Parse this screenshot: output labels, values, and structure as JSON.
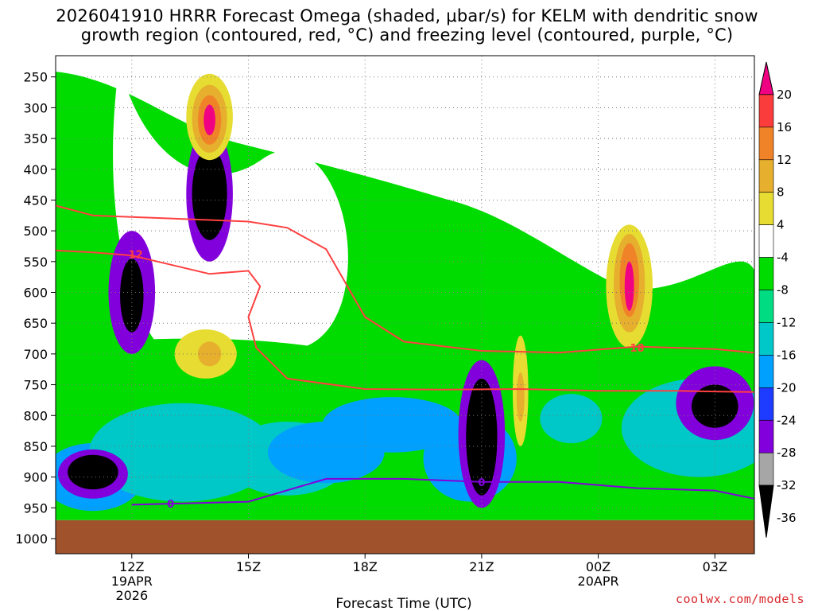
{
  "title_line1": "2026041910 HRRR Forecast Omega (shaded, μbar/s) for KELM with dendritic snow",
  "title_line2": "growth region (contoured, red, °C) and freezing level (contoured, purple, °C)",
  "credit": "coolwx.com/models",
  "chart_data": {
    "type": "heatmap",
    "title": "2026041910 HRRR Forecast Omega (shaded, μbar/s) for KELM with dendritic snow growth region (contoured, red, °C) and freezing level (contoured, purple, °C)",
    "xlabel": "Forecast Time (UTC)",
    "ylabel": "",
    "y_axis": "pressure (mb), reversed",
    "x_ticks": [
      {
        "label": "12Z",
        "sub1": "19APR",
        "sub2": "2026",
        "hour": 2
      },
      {
        "label": "15Z",
        "sub1": "",
        "sub2": "",
        "hour": 5
      },
      {
        "label": "18Z",
        "sub1": "",
        "sub2": "",
        "hour": 8
      },
      {
        "label": "21Z",
        "sub1": "",
        "sub2": "",
        "hour": 11
      },
      {
        "label": "00Z",
        "sub1": "20APR",
        "sub2": "",
        "hour": 14
      },
      {
        "label": "03Z",
        "sub1": "",
        "sub2": "",
        "hour": 17
      }
    ],
    "x_range_hours": [
      0,
      18
    ],
    "y_ticks": [
      250,
      300,
      350,
      400,
      450,
      500,
      550,
      600,
      650,
      700,
      750,
      800,
      850,
      900,
      950,
      1000
    ],
    "y_range": [
      200,
      1000
    ],
    "surface_pressure": 970,
    "colorbar": {
      "levels": [
        -36,
        -32,
        -28,
        -24,
        -20,
        -16,
        -12,
        -8,
        -4,
        4,
        8,
        12,
        16,
        20
      ],
      "colors": [
        "#000000",
        "#a6a6a6",
        "#8200dc",
        "#1e3cff",
        "#00a0ff",
        "#00c8c8",
        "#00dc82",
        "#00dc00",
        "#ffffff",
        "#e6dc32",
        "#e6af2d",
        "#f08228",
        "#fa3c3c",
        "#f00082"
      ],
      "units": "μbar/s"
    },
    "grid": true,
    "contours": {
      "dgz_red_-12": [
        [
          -0.5,
          530
        ],
        [
          1,
          535
        ],
        [
          2,
          540
        ],
        [
          3,
          555
        ],
        [
          4,
          570
        ],
        [
          5,
          565
        ],
        [
          5.3,
          590
        ],
        [
          5,
          640
        ],
        [
          5.2,
          690
        ],
        [
          6,
          740
        ],
        [
          8,
          757
        ],
        [
          10,
          758
        ],
        [
          12,
          757
        ],
        [
          14,
          760
        ],
        [
          16,
          760
        ],
        [
          17,
          761
        ],
        [
          18,
          762
        ]
      ],
      "dgz_red_-18": [
        [
          -0.5,
          450
        ],
        [
          1,
          475
        ],
        [
          3,
          480
        ],
        [
          5,
          485
        ],
        [
          6,
          495
        ],
        [
          7,
          530
        ],
        [
          8,
          640
        ],
        [
          9,
          680
        ],
        [
          11,
          695
        ],
        [
          13,
          698
        ],
        [
          15,
          688
        ],
        [
          17,
          692
        ],
        [
          18,
          698
        ]
      ],
      "freezing_purple_0": [
        [
          2,
          945
        ],
        [
          5,
          940
        ],
        [
          7,
          903
        ],
        [
          9,
          903
        ],
        [
          11,
          908
        ],
        [
          13,
          908
        ],
        [
          15,
          918
        ],
        [
          17,
          922
        ],
        [
          18,
          935
        ]
      ]
    },
    "contour_labels": [
      {
        "text": "12",
        "hour": 2.1,
        "p": 538,
        "color": "#ff4040"
      },
      {
        "text": "18",
        "hour": 15.0,
        "p": 690,
        "color": "#ff4040"
      },
      {
        "text": "0",
        "hour": 3.0,
        "p": 943,
        "color": "#8200dc"
      },
      {
        "text": "0",
        "hour": 11.0,
        "p": 908,
        "color": "#8200dc"
      }
    ],
    "blobs": [
      {
        "h": 0.3,
        "p": 770,
        "rh": 1.6,
        "rp": 40,
        "lvl": 0
      },
      {
        "h": 3.5,
        "p": 720,
        "rh": 4.5,
        "rp": 45,
        "lvl": 0
      },
      {
        "h": 9.0,
        "p": 830,
        "rh": 4.0,
        "rp": 60,
        "lvl": 0
      },
      {
        "h": 14.5,
        "p": 800,
        "rh": 4.0,
        "rp": 60,
        "lvl": 0
      },
      {
        "h": 1.0,
        "p": 900,
        "rh": 1.3,
        "rp": 55,
        "lvl": 4
      },
      {
        "h": 3.3,
        "p": 860,
        "rh": 2.4,
        "rp": 80,
        "lvl": 3
      },
      {
        "h": 6.0,
        "p": 870,
        "rh": 1.6,
        "rp": 60,
        "lvl": 3
      },
      {
        "h": 7.0,
        "p": 860,
        "rh": 1.5,
        "rp": 50,
        "lvl": 4
      },
      {
        "h": 8.7,
        "p": 815,
        "rh": 1.8,
        "rp": 45,
        "lvl": 4
      },
      {
        "h": 10.7,
        "p": 870,
        "rh": 1.2,
        "rp": 70,
        "lvl": 4
      },
      {
        "h": 13.3,
        "p": 805,
        "rh": 0.8,
        "rp": 40,
        "lvl": 3
      },
      {
        "h": 16.6,
        "p": 820,
        "rh": 2.0,
        "rp": 80,
        "lvl": 3
      },
      {
        "h": 1.0,
        "p": 895,
        "rh": 0.9,
        "rp": 40,
        "lvl": 6
      },
      {
        "h": 1.0,
        "p": 892,
        "rh": 0.65,
        "rp": 28,
        "lvl": 8
      },
      {
        "h": 1.0,
        "p": 890,
        "rh": 0.5,
        "rp": 20,
        "lvl": 9
      },
      {
        "h": 2.0,
        "p": 600,
        "rh": 0.6,
        "rp": 100,
        "lvl": 6
      },
      {
        "h": 2.0,
        "p": 605,
        "rh": 0.3,
        "rp": 60,
        "lvl": 8
      },
      {
        "h": 2.0,
        "p": 610,
        "rh": 0.2,
        "rp": 40,
        "lvl": 9
      },
      {
        "h": 4.0,
        "p": 440,
        "rh": 0.6,
        "rp": 110,
        "lvl": 6
      },
      {
        "h": 4.0,
        "p": 440,
        "rh": 0.45,
        "rp": 75,
        "lvl": 8
      },
      {
        "h": 4.0,
        "p": 445,
        "rh": 0.35,
        "rp": 65,
        "lvl": 9
      },
      {
        "h": 11.0,
        "p": 830,
        "rh": 0.6,
        "rp": 120,
        "lvl": 6
      },
      {
        "h": 11.0,
        "p": 835,
        "rh": 0.4,
        "rp": 95,
        "lvl": 8
      },
      {
        "h": 11.0,
        "p": 840,
        "rh": 0.3,
        "rp": 80,
        "lvl": 9
      },
      {
        "h": 17.0,
        "p": 780,
        "rh": 1.0,
        "rp": 60,
        "lvl": 6
      },
      {
        "h": 17.0,
        "p": 785,
        "rh": 0.6,
        "rp": 35,
        "lvl": 8
      },
      {
        "h": 17.0,
        "p": 780,
        "rh": 0.25,
        "rp": 18,
        "lvl": 9
      },
      {
        "h": 4.0,
        "p": 315,
        "rh": 0.6,
        "rp": 70,
        "lvl": -1
      },
      {
        "h": 4.0,
        "p": 318,
        "rh": 0.45,
        "rp": 55,
        "lvl": -2
      },
      {
        "h": 4.0,
        "p": 320,
        "rh": 0.3,
        "rp": 40,
        "lvl": -3
      },
      {
        "h": 4.0,
        "p": 320,
        "rh": 0.15,
        "rp": 25,
        "lvl": -5
      },
      {
        "h": 14.8,
        "p": 590,
        "rh": 0.6,
        "rp": 100,
        "lvl": -1
      },
      {
        "h": 14.8,
        "p": 585,
        "rh": 0.4,
        "rp": 80,
        "lvl": -2
      },
      {
        "h": 14.8,
        "p": 580,
        "rh": 0.25,
        "rp": 60,
        "lvl": -3
      },
      {
        "h": 14.8,
        "p": 590,
        "rh": 0.12,
        "rp": 40,
        "lvl": -5
      },
      {
        "h": 3.9,
        "p": 700,
        "rh": 0.8,
        "rp": 40,
        "lvl": -1
      },
      {
        "h": 4.0,
        "p": 700,
        "rh": 0.3,
        "rp": 20,
        "lvl": -2
      },
      {
        "h": 12.0,
        "p": 760,
        "rh": 0.2,
        "rp": 90,
        "lvl": -1
      },
      {
        "h": 12.0,
        "p": 770,
        "rh": 0.1,
        "rp": 40,
        "lvl": -2
      }
    ]
  }
}
